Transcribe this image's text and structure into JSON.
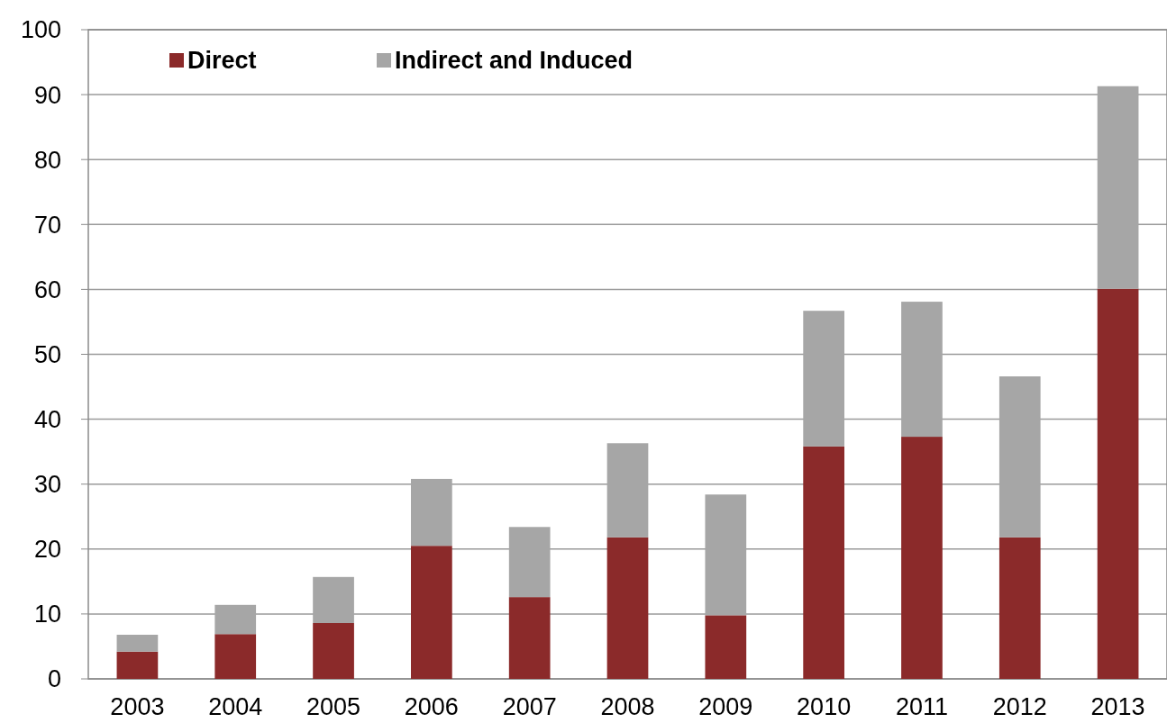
{
  "chart_data": {
    "type": "bar",
    "stacked": true,
    "categories": [
      "2003",
      "2004",
      "2005",
      "2006",
      "2007",
      "2008",
      "2009",
      "2010",
      "2011",
      "2012",
      "2013"
    ],
    "series": [
      {
        "name": "Direct",
        "color": "#8b2a2a",
        "values": [
          4.2,
          6.9,
          8.6,
          20.5,
          12.6,
          21.8,
          9.8,
          35.8,
          37.3,
          21.8,
          60.1
        ]
      },
      {
        "name": "Indirect and Induced",
        "color": "#a6a6a6",
        "values": [
          2.6,
          4.5,
          7.1,
          10.3,
          10.8,
          14.5,
          18.6,
          20.9,
          20.8,
          24.8,
          31.2
        ]
      }
    ],
    "ylim": [
      0,
      100
    ],
    "yticks": [
      0,
      10,
      20,
      30,
      40,
      50,
      60,
      70,
      80,
      90,
      100
    ],
    "grid": "y",
    "legend": "top left"
  }
}
